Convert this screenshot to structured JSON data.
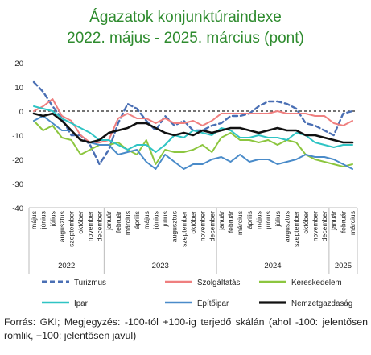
{
  "header": {
    "title": "Ágazatok konjunktúraindexe",
    "subtitle": "2022. május - 2025. március (pont)"
  },
  "footer": {
    "note": "Forrás: GKI; Megjegyzés: -100-tól +100-ig terjedő skálán (ahol -100: jelentősen romlik, +100: jelentősen javul)"
  },
  "chart_data": {
    "type": "line",
    "title": "Ágazatok konjunktúraindexe",
    "subtitle": "2022. május - 2025. március (pont)",
    "ylim": [
      -40,
      20
    ],
    "yticks": [
      20,
      10,
      0,
      -10,
      -20,
      -30,
      -40
    ],
    "grid": false,
    "legend_position": "bottom",
    "year_groups": [
      {
        "label": "2022",
        "start": 0,
        "end": 7
      },
      {
        "label": "2023",
        "start": 8,
        "end": 19
      },
      {
        "label": "2024",
        "start": 20,
        "end": 31
      },
      {
        "label": "2025",
        "start": 32,
        "end": 34
      }
    ],
    "x": [
      "május",
      "június",
      "július",
      "augusztus",
      "szeptember",
      "október",
      "november",
      "december",
      "január",
      "február",
      "március",
      "április",
      "május",
      "június",
      "július",
      "augusztus",
      "szeptember",
      "október",
      "november",
      "december",
      "január",
      "február",
      "március",
      "április",
      "május",
      "június",
      "július",
      "augusztus",
      "szeptember",
      "október",
      "november",
      "december",
      "január",
      "február",
      "március"
    ],
    "series": [
      {
        "name": "Turizmus",
        "color": "#4a6fb4",
        "dash": "6,4",
        "width": 2.4,
        "values": [
          12,
          8,
          2,
          -3,
          -10,
          -10,
          -14,
          -22,
          -16,
          -5,
          3,
          1,
          -4,
          -8,
          -2,
          -6,
          -4,
          -8,
          -8,
          -6,
          -5,
          -2,
          -2,
          -1,
          2,
          4,
          4,
          3,
          1,
          -5,
          -6,
          -8,
          -10,
          -1,
          0
        ]
      },
      {
        "name": "Szolgáltatás",
        "color": "#ef7f7f",
        "dash": "",
        "width": 2,
        "values": [
          0,
          2,
          5,
          -2,
          -4,
          -10,
          -13,
          -13,
          -12,
          -3,
          -1,
          -3,
          -3,
          -5,
          -3,
          -5,
          -5,
          -4,
          -6,
          -4,
          -1,
          -1,
          -1,
          -1,
          -1,
          -1,
          0,
          -1,
          -1,
          -1,
          -2,
          -2,
          -5,
          -6,
          -4
        ]
      },
      {
        "name": "Kereskedelem",
        "color": "#8cc63f",
        "dash": "",
        "width": 2,
        "values": [
          -4,
          -8,
          -6,
          -11,
          -12,
          -18,
          -16,
          -14,
          -14,
          -13,
          -16,
          -18,
          -12,
          -22,
          -16,
          -17,
          -17,
          -16,
          -14,
          -17,
          -11,
          -9,
          -12,
          -12,
          -13,
          -12,
          -14,
          -12,
          -13,
          -18,
          -20,
          -21,
          -22,
          -23,
          -22
        ]
      },
      {
        "name": "Ipar",
        "color": "#2fc4c4",
        "dash": "",
        "width": 2,
        "values": [
          2,
          1,
          0,
          -3,
          -5,
          -7,
          -9,
          -12,
          -12,
          -14,
          -16,
          -14,
          -14,
          -17,
          -14,
          -10,
          -11,
          -8,
          -9,
          -10,
          -7,
          -8,
          -11,
          -11,
          -10,
          -11,
          -11,
          -12,
          -9,
          -10,
          -13,
          -14,
          -15,
          -14,
          -14
        ]
      },
      {
        "name": "Építőipar",
        "color": "#4a8bc9",
        "dash": "",
        "width": 2,
        "values": [
          -4,
          -2,
          -5,
          -8,
          -8,
          -12,
          -13,
          -14,
          -14,
          -18,
          -17,
          -16,
          -21,
          -24,
          -18,
          -21,
          -24,
          -22,
          -22,
          -20,
          -19,
          -21,
          -18,
          -21,
          -20,
          -20,
          -22,
          -21,
          -20,
          -18,
          -19,
          -19,
          -20,
          -22,
          -24
        ]
      },
      {
        "name": "Nemzetgazdaság",
        "color": "#111111",
        "dash": "",
        "width": 2.6,
        "values": [
          -1,
          -2,
          -1,
          -4,
          -8,
          -12,
          -13,
          -12,
          -9,
          -8,
          -7,
          -5,
          -5,
          -7,
          -9,
          -10,
          -9,
          -10,
          -8,
          -9,
          -8,
          -7,
          -7,
          -8,
          -9,
          -8,
          -7,
          -8,
          -8,
          -10,
          -10,
          -11,
          -12,
          -13,
          -13
        ]
      }
    ]
  }
}
